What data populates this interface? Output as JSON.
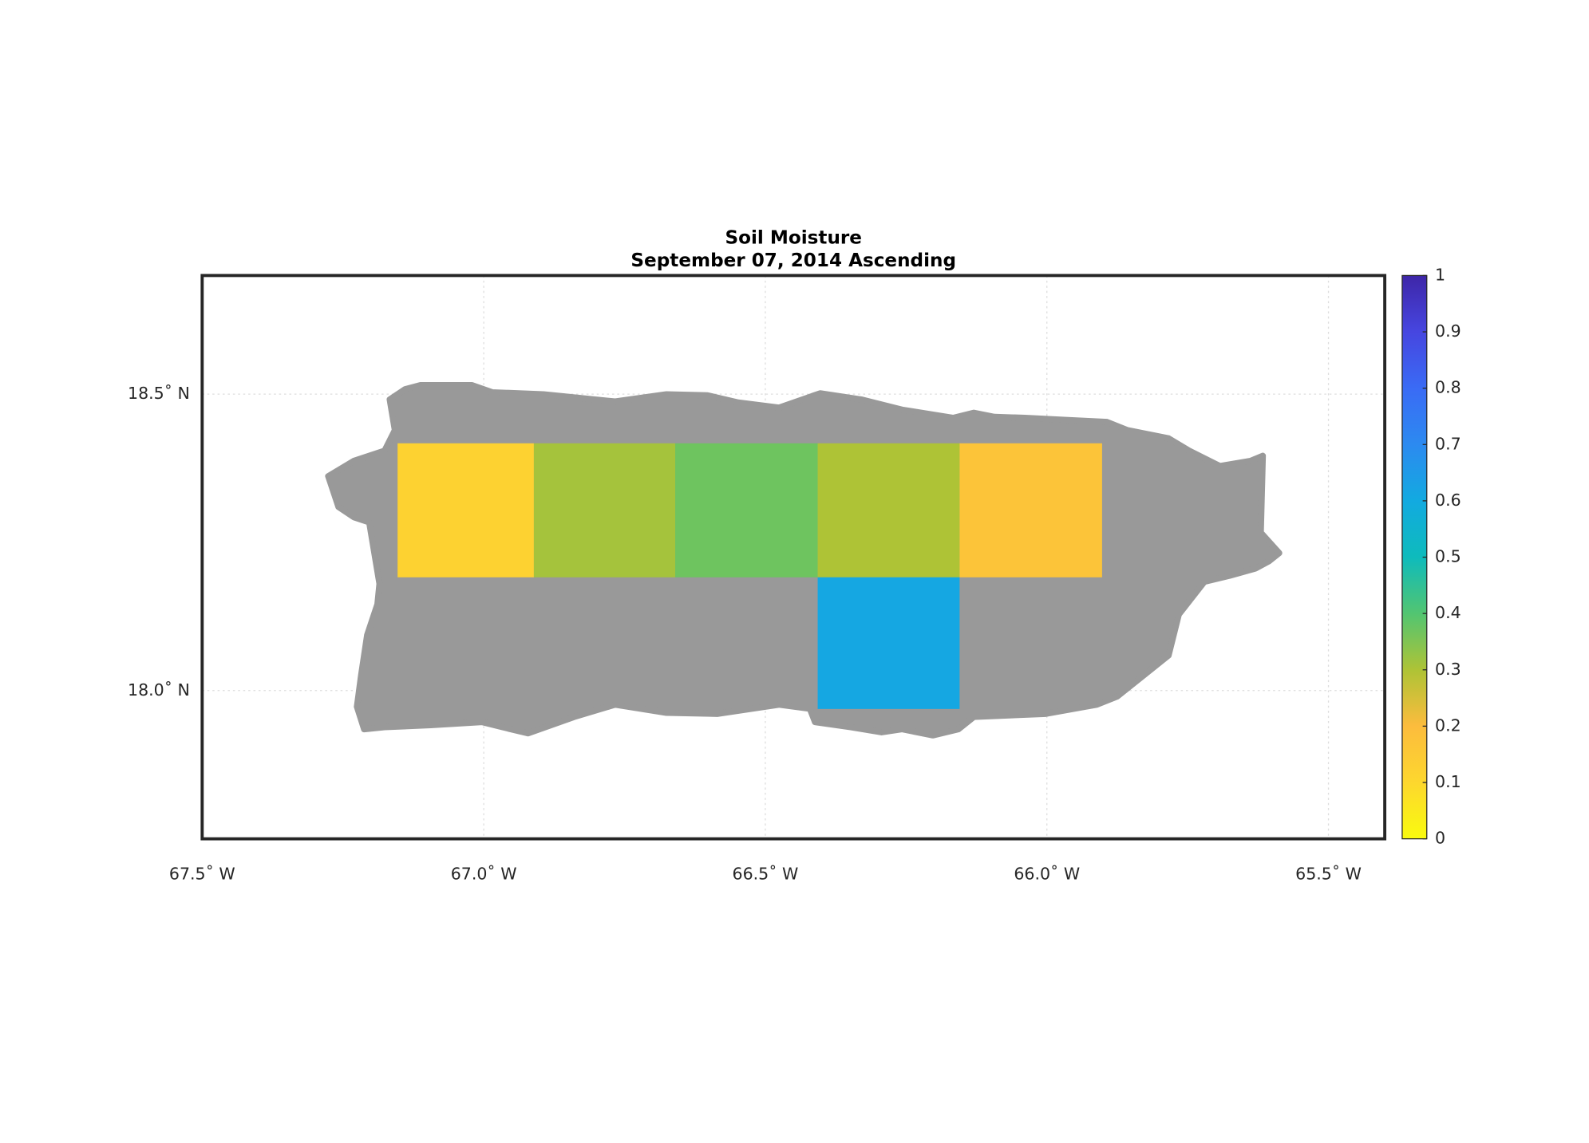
{
  "chart_data": {
    "type": "map",
    "title": "Soil Moisture",
    "subtitle": "September 07, 2014 Ascending",
    "xlim": [
      -67.5,
      -65.4
    ],
    "ylim": [
      17.75,
      18.7
    ],
    "xticks": [
      {
        "value": -67.5,
        "label": "67.5˚ W"
      },
      {
        "value": -67.0,
        "label": "67.0˚ W"
      },
      {
        "value": -66.5,
        "label": "66.5˚ W"
      },
      {
        "value": -66.0,
        "label": "66.0˚ W"
      },
      {
        "value": -65.5,
        "label": "65.5˚ W"
      }
    ],
    "yticks": [
      {
        "value": 18.0,
        "label": "18.0˚ N"
      },
      {
        "value": 18.5,
        "label": "18.5˚ N"
      }
    ],
    "grid": true,
    "cells": [
      {
        "lon": [
          -67.153,
          -66.911
        ],
        "lat": [
          18.191,
          18.417
        ],
        "value": 0.12
      },
      {
        "lon": [
          -66.911,
          -66.66
        ],
        "lat": [
          18.191,
          18.417
        ],
        "value": 0.31
      },
      {
        "lon": [
          -66.66,
          -66.407
        ],
        "lat": [
          18.191,
          18.417
        ],
        "value": 0.37
      },
      {
        "lon": [
          -66.407,
          -66.155
        ],
        "lat": [
          18.191,
          18.417
        ],
        "value": 0.3
      },
      {
        "lon": [
          -66.155,
          -65.902
        ],
        "lat": [
          18.191,
          18.417
        ],
        "value": 0.17
      },
      {
        "lon": [
          -66.407,
          -66.155
        ],
        "lat": [
          17.969,
          18.191
        ],
        "value": 0.61
      }
    ],
    "clim": [
      0,
      1
    ],
    "cticks": [
      0,
      0.1,
      0.2,
      0.3,
      0.4,
      0.5,
      0.6,
      0.7,
      0.8,
      0.9,
      1
    ],
    "colormap": [
      "#f9fb0e",
      "#fdd72e",
      "#fcbc3d",
      "#aec336",
      "#52c571",
      "#0ebbbc",
      "#12aae0",
      "#2c8af0",
      "#3a6bf5",
      "#4646e0",
      "#3e26a8"
    ]
  }
}
